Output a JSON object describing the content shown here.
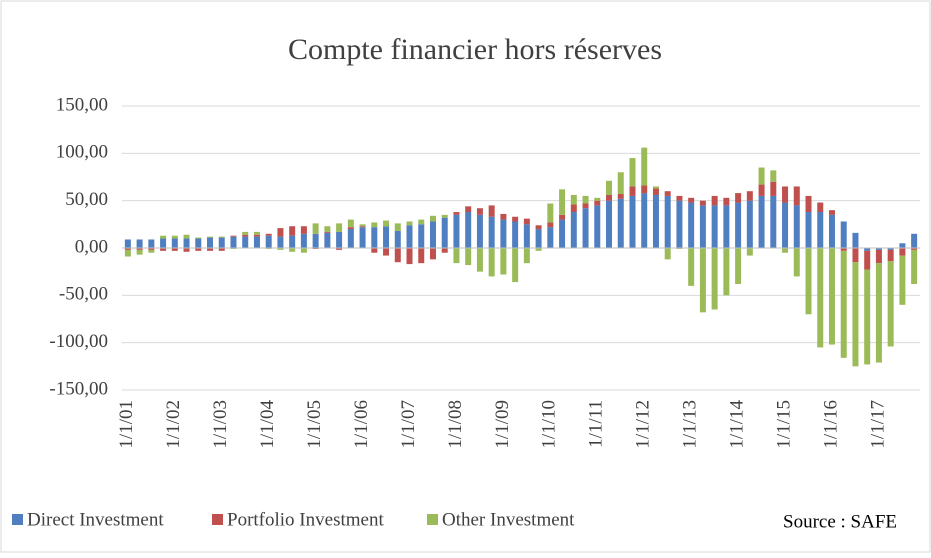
{
  "chart_data": {
    "type": "stacked_bar",
    "title": "Compte financier hors réserves",
    "annotation": "Source : SAFE",
    "categories": [
      "1/1/01",
      null,
      null,
      null,
      "1/1/02",
      null,
      null,
      null,
      "1/1/03",
      null,
      null,
      null,
      "1/1/04",
      null,
      null,
      null,
      "1/1/05",
      null,
      null,
      null,
      "1/1/06",
      null,
      null,
      null,
      "1/1/07",
      null,
      null,
      null,
      "1/1/08",
      null,
      null,
      null,
      "1/1/09",
      null,
      null,
      null,
      "1/1/10",
      null,
      null,
      null,
      "1/1/11",
      null,
      null,
      null,
      "1/1/12",
      null,
      null,
      null,
      "1/1/13",
      null,
      null,
      null,
      "1/1/14",
      null,
      null,
      null,
      "1/1/15",
      null,
      null,
      null,
      "1/1/16",
      null,
      null,
      null,
      "1/1/17",
      null,
      null,
      null
    ],
    "series": [
      {
        "name": "Direct Investment",
        "color": "#4f7fc1",
        "values": [
          9,
          9,
          9,
          10,
          10,
          10,
          10,
          11,
          11,
          12,
          12,
          12,
          13,
          12,
          13,
          15,
          15,
          16,
          17,
          20,
          22,
          22,
          23,
          18,
          24,
          25,
          28,
          32,
          35,
          38,
          35,
          33,
          30,
          28,
          25,
          20,
          22,
          30,
          38,
          42,
          45,
          50,
          52,
          55,
          58,
          56,
          55,
          50,
          48,
          45,
          45,
          45,
          48,
          50,
          55,
          55,
          48,
          45,
          38,
          38,
          35,
          28,
          16,
          -3,
          -2,
          -2,
          5,
          15
        ]
      },
      {
        "name": "Portfolio Investment",
        "color": "#c0504d",
        "values": [
          -2,
          -2,
          -2,
          -3,
          -3,
          -4,
          -3,
          -3,
          -3,
          1,
          2,
          2,
          2,
          9,
          10,
          8,
          -1,
          1,
          -2,
          2,
          1,
          -5,
          -8,
          -15,
          -17,
          -16,
          -12,
          -5,
          3,
          6,
          7,
          12,
          6,
          5,
          6,
          4,
          5,
          5,
          8,
          5,
          5,
          6,
          5,
          10,
          8,
          7,
          5,
          5,
          5,
          5,
          10,
          8,
          10,
          10,
          12,
          15,
          17,
          20,
          17,
          10,
          5,
          -3,
          -15,
          -20,
          -14,
          -12,
          -8,
          -2
        ]
      },
      {
        "name": "Other Investment",
        "color": "#9bbb59",
        "values": [
          -7,
          -5,
          -3,
          3,
          3,
          4,
          1,
          1,
          1,
          -1,
          3,
          3,
          -1,
          -2,
          -4,
          -5,
          11,
          6,
          9,
          8,
          2,
          5,
          6,
          8,
          4,
          5,
          6,
          3,
          -16,
          -18,
          -25,
          -30,
          -28,
          -36,
          -16,
          -3,
          20,
          27,
          10,
          8,
          3,
          15,
          23,
          30,
          40,
          2,
          -12,
          -1,
          -40,
          -68,
          -65,
          -50,
          -38,
          -8,
          18,
          12,
          -5,
          -30,
          -70,
          -105,
          -102,
          -113,
          -110,
          -100,
          -105,
          -90,
          -52,
          -36
        ]
      }
    ],
    "ylim": [
      -150,
      150
    ],
    "yticks": [
      {
        "value": -150,
        "label": "-150,00"
      },
      {
        "value": -100,
        "label": "-100,00"
      },
      {
        "value": -50,
        "label": "-50,00"
      },
      {
        "value": 0,
        "label": "0,00"
      },
      {
        "value": 50,
        "label": "50,00"
      },
      {
        "value": 100,
        "label": "100,00"
      },
      {
        "value": 150,
        "label": "150,00"
      }
    ],
    "grid": true,
    "legend": "bottom"
  }
}
